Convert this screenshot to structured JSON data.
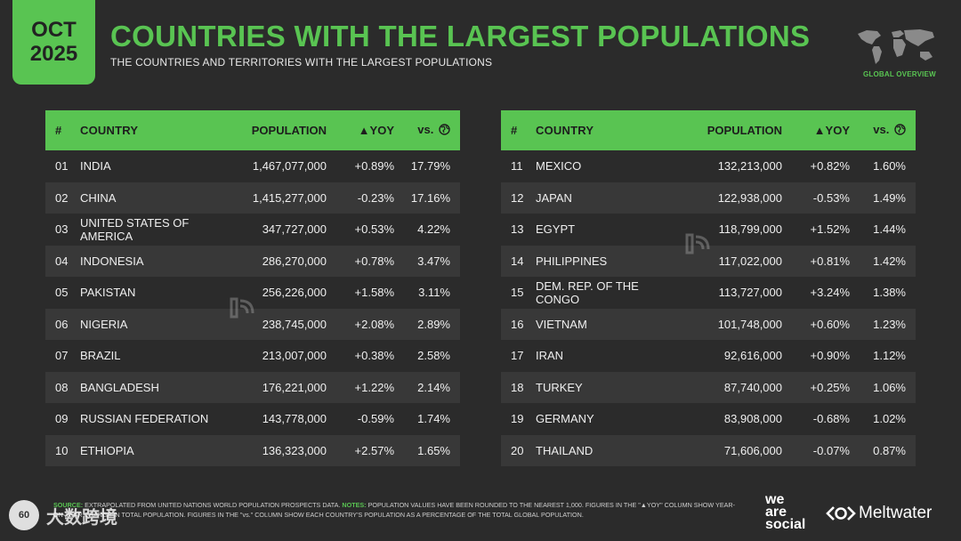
{
  "header": {
    "month": "OCT",
    "year": "2025",
    "title": "COUNTRIES WITH THE LARGEST POPULATIONS",
    "subtitle": "THE COUNTRIES AND TERRITORIES WITH THE LARGEST POPULATIONS",
    "section_label": "GLOBAL OVERVIEW"
  },
  "columns": {
    "num": "#",
    "country": "COUNTRY",
    "population": "POPULATION",
    "yoy": "▲YOY",
    "share": "vs."
  },
  "left_rows": [
    {
      "num": "01",
      "country": "INDIA",
      "population": "1,467,077,000",
      "yoy": "+0.89%",
      "share": "17.79%"
    },
    {
      "num": "02",
      "country": "CHINA",
      "population": "1,415,277,000",
      "yoy": "-0.23%",
      "share": "17.16%"
    },
    {
      "num": "03",
      "country": "UNITED STATES OF AMERICA",
      "population": "347,727,000",
      "yoy": "+0.53%",
      "share": "4.22%"
    },
    {
      "num": "04",
      "country": "INDONESIA",
      "population": "286,270,000",
      "yoy": "+0.78%",
      "share": "3.47%"
    },
    {
      "num": "05",
      "country": "PAKISTAN",
      "population": "256,226,000",
      "yoy": "+1.58%",
      "share": "3.11%"
    },
    {
      "num": "06",
      "country": "NIGERIA",
      "population": "238,745,000",
      "yoy": "+2.08%",
      "share": "2.89%"
    },
    {
      "num": "07",
      "country": "BRAZIL",
      "population": "213,007,000",
      "yoy": "+0.38%",
      "share": "2.58%"
    },
    {
      "num": "08",
      "country": "BANGLADESH",
      "population": "176,221,000",
      "yoy": "+1.22%",
      "share": "2.14%"
    },
    {
      "num": "09",
      "country": "RUSSIAN FEDERATION",
      "population": "143,778,000",
      "yoy": "-0.59%",
      "share": "1.74%"
    },
    {
      "num": "10",
      "country": "ETHIOPIA",
      "population": "136,323,000",
      "yoy": "+2.57%",
      "share": "1.65%"
    }
  ],
  "right_rows": [
    {
      "num": "11",
      "country": "MEXICO",
      "population": "132,213,000",
      "yoy": "+0.82%",
      "share": "1.60%"
    },
    {
      "num": "12",
      "country": "JAPAN",
      "population": "122,938,000",
      "yoy": "-0.53%",
      "share": "1.49%"
    },
    {
      "num": "13",
      "country": "EGYPT",
      "population": "118,799,000",
      "yoy": "+1.52%",
      "share": "1.44%"
    },
    {
      "num": "14",
      "country": "PHILIPPINES",
      "population": "117,022,000",
      "yoy": "+0.81%",
      "share": "1.42%"
    },
    {
      "num": "15",
      "country": "DEM. REP. OF THE CONGO",
      "population": "113,727,000",
      "yoy": "+3.24%",
      "share": "1.38%"
    },
    {
      "num": "16",
      "country": "VIETNAM",
      "population": "101,748,000",
      "yoy": "+0.60%",
      "share": "1.23%"
    },
    {
      "num": "17",
      "country": "IRAN",
      "population": "92,616,000",
      "yoy": "+0.90%",
      "share": "1.12%"
    },
    {
      "num": "18",
      "country": "TURKEY",
      "population": "87,740,000",
      "yoy": "+0.25%",
      "share": "1.06%"
    },
    {
      "num": "19",
      "country": "GERMANY",
      "population": "83,908,000",
      "yoy": "-0.68%",
      "share": "1.02%"
    },
    {
      "num": "20",
      "country": "THAILAND",
      "population": "71,606,000",
      "yoy": "-0.07%",
      "share": "0.87%"
    }
  ],
  "footer": {
    "source_key": "SOURCE:",
    "source_text": "EXTRAPOLATED FROM UNITED NATIONS WORLD POPULATION PROSPECTS DATA.",
    "notes_key": "NOTES:",
    "notes_text": "POPULATION VALUES HAVE BEEN ROUNDED TO THE NEAREST 1,000. FIGURES IN THE \"▲YOY\" COLUMN SHOW YEAR-ON-YEAR CHANGE IN TOTAL POPULATION. FIGURES IN THE \"vs.\" COLUMN SHOW EACH COUNTRY'S POPULATION AS A PERCENTAGE OF THE TOTAL GLOBAL POPULATION."
  },
  "brands": {
    "was_line1": "we",
    "was_line2": "are",
    "was_line3": "social",
    "meltwater": "Meltwater"
  },
  "watermark": {
    "text": "大数跨境",
    "badge": "60"
  },
  "colors": {
    "accent": "#59c452",
    "background": "#2b2b2b",
    "row_alt": "#383838"
  }
}
